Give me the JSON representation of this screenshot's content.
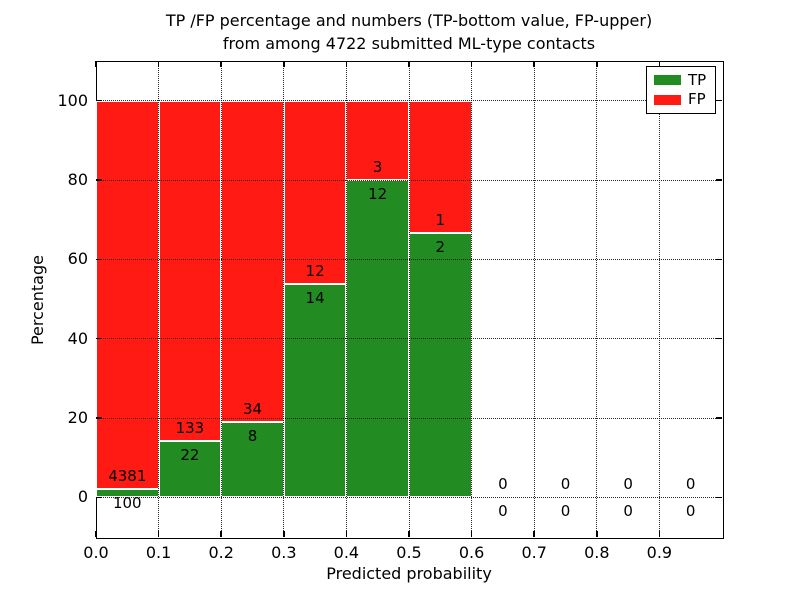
{
  "title": {
    "line1": "TP /FP percentage and numbers (TP-bottom value, FP-upper)",
    "line2": "from among 4722 submitted ML-type contacts"
  },
  "axes": {
    "xlabel": "Predicted probability",
    "ylabel": "Percentage",
    "x_tick_labels": [
      "0.0",
      "0.1",
      "0.2",
      "0.3",
      "0.4",
      "0.5",
      "0.6",
      "0.7",
      "0.8",
      "0.9"
    ],
    "y_tick_labels": [
      "0",
      "20",
      "40",
      "60",
      "80",
      "100"
    ]
  },
  "legend": {
    "items": [
      {
        "label": "TP",
        "color": "#228b22"
      },
      {
        "label": "FP",
        "color": "#ff1a14"
      }
    ]
  },
  "colors": {
    "tp": "#228b22",
    "fp": "#ff1a14",
    "bar_edge": "#ffffff",
    "grid": "#000000",
    "frame": "#000000"
  },
  "chart_data": {
    "type": "bar",
    "subtype": "stacked-percentage-histogram",
    "title": "TP /FP percentage and numbers (TP-bottom value, FP-upper) from among 4722 submitted ML-type contacts",
    "xlabel": "Predicted probability",
    "ylabel": "Percentage",
    "xlim": [
      0.0,
      1.0
    ],
    "ylim": [
      -10,
      110
    ],
    "grid": true,
    "legend_position": "upper right",
    "bin_width": 0.1,
    "total_contacts": 4722,
    "series": [
      {
        "name": "TP",
        "color": "#228b22"
      },
      {
        "name": "FP",
        "color": "#ff1a14"
      }
    ],
    "bins": [
      {
        "range": [
          0.0,
          0.1
        ],
        "tp": 100,
        "fp": 4381,
        "tp_pct": 2.2,
        "fp_pct": 97.8
      },
      {
        "range": [
          0.1,
          0.2
        ],
        "tp": 22,
        "fp": 133,
        "tp_pct": 14.2,
        "fp_pct": 85.8
      },
      {
        "range": [
          0.2,
          0.3
        ],
        "tp": 8,
        "fp": 34,
        "tp_pct": 19.0,
        "fp_pct": 81.0
      },
      {
        "range": [
          0.3,
          0.4
        ],
        "tp": 14,
        "fp": 12,
        "tp_pct": 53.8,
        "fp_pct": 46.2
      },
      {
        "range": [
          0.4,
          0.5
        ],
        "tp": 12,
        "fp": 3,
        "tp_pct": 80.0,
        "fp_pct": 20.0
      },
      {
        "range": [
          0.5,
          0.6
        ],
        "tp": 2,
        "fp": 1,
        "tp_pct": 66.7,
        "fp_pct": 33.3
      },
      {
        "range": [
          0.6,
          0.7
        ],
        "tp": 0,
        "fp": 0,
        "tp_pct": 0.0,
        "fp_pct": 0.0
      },
      {
        "range": [
          0.7,
          0.8
        ],
        "tp": 0,
        "fp": 0,
        "tp_pct": 0.0,
        "fp_pct": 0.0
      },
      {
        "range": [
          0.8,
          0.9
        ],
        "tp": 0,
        "fp": 0,
        "tp_pct": 0.0,
        "fp_pct": 0.0
      },
      {
        "range": [
          0.9,
          1.0
        ],
        "tp": 0,
        "fp": 0,
        "tp_pct": 0.0,
        "fp_pct": 0.0
      }
    ]
  }
}
